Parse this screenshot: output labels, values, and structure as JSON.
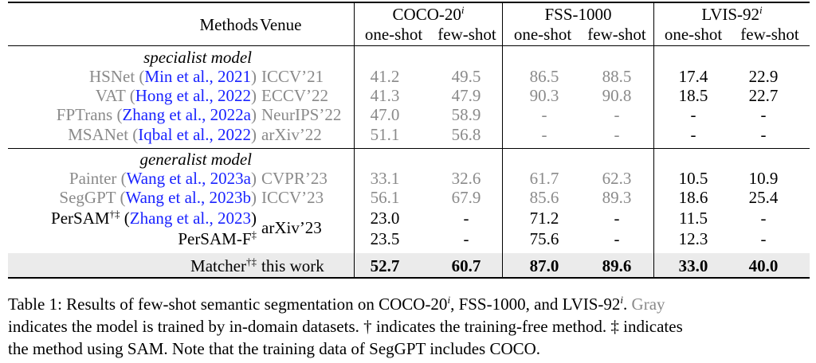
{
  "header": {
    "methods": "Methods",
    "venue": "Venue",
    "groups": [
      {
        "name": "COCO-20",
        "sup": "i"
      },
      {
        "name": "FSS-1000",
        "sup": ""
      },
      {
        "name": "LVIS-92",
        "sup": "i"
      }
    ],
    "one_shot": "one-shot",
    "few_shot": "few-shot"
  },
  "sections": {
    "specialist": "specialist model",
    "generalist": "generalist model"
  },
  "rows": [
    {
      "method": "HSNet",
      "cite": "Min et al., 2021",
      "sup": "",
      "venue": "ICCV’21",
      "gray": true,
      "cells": [
        "41.2",
        "49.5",
        "86.5",
        "88.5",
        "17.4",
        "22.9"
      ]
    },
    {
      "method": "VAT",
      "cite": "Hong et al., 2022",
      "sup": "",
      "venue": "ECCV’22",
      "gray": true,
      "cells": [
        "41.3",
        "47.9",
        "90.3",
        "90.8",
        "18.5",
        "22.7"
      ]
    },
    {
      "method": "FPTrans",
      "cite": "Zhang et al., 2022a",
      "sup": "",
      "venue": "NeurIPS’22",
      "gray": true,
      "cells": [
        "47.0",
        "58.9",
        "-",
        "-",
        "-",
        "-"
      ]
    },
    {
      "method": "MSANet",
      "cite": "Iqbal et al., 2022",
      "sup": "",
      "venue": "arXiv’22",
      "gray": true,
      "cells": [
        "51.1",
        "56.8",
        "-",
        "-",
        "-",
        "-"
      ]
    },
    {
      "method": "Painter",
      "cite": "Wang et al., 2023a",
      "sup": "",
      "venue": "CVPR’23",
      "gray": true,
      "cells": [
        "33.1",
        "32.6",
        "61.7",
        "62.3",
        "10.5",
        "10.9"
      ]
    },
    {
      "method": "SegGPT",
      "cite": "Wang et al., 2023b",
      "sup": "",
      "venue": "ICCV’23",
      "gray": true,
      "cells": [
        "56.1",
        "67.9",
        "85.6",
        "89.3",
        "18.6",
        "25.4"
      ]
    },
    {
      "method": "PerSAM",
      "cite": "Zhang et al., 2023",
      "sup": "†‡",
      "venue": "arXiv’23",
      "gray": false,
      "cells": [
        "23.0",
        "-",
        "71.2",
        "-",
        "11.5",
        "-"
      ]
    },
    {
      "method": "PerSAM-F",
      "cite": "",
      "sup": "‡",
      "venue": "",
      "gray": false,
      "cells": [
        "23.5",
        "-",
        "75.6",
        "-",
        "12.3",
        "-"
      ]
    },
    {
      "method": "Matcher",
      "cite": "",
      "sup": "†‡",
      "venue": "this work",
      "gray": false,
      "cells": [
        "52.7",
        "60.7",
        "87.0",
        "89.6",
        "33.0",
        "40.0"
      ]
    }
  ],
  "caption": {
    "line1_a": "Table 1: Results of few-shot semantic segmentation on COCO-20",
    "line1_sup1": "i",
    "line1_b": ", FSS-1000, and LVIS-92",
    "line1_sup2": "i",
    "line1_c": ". ",
    "line1_gray": "Gray",
    "line2": "indicates the model is trained by in-domain datasets. † indicates the training-free method. ‡ indicates",
    "line3": "the method using SAM. Note that the training data of SegGPT includes COCO."
  }
}
